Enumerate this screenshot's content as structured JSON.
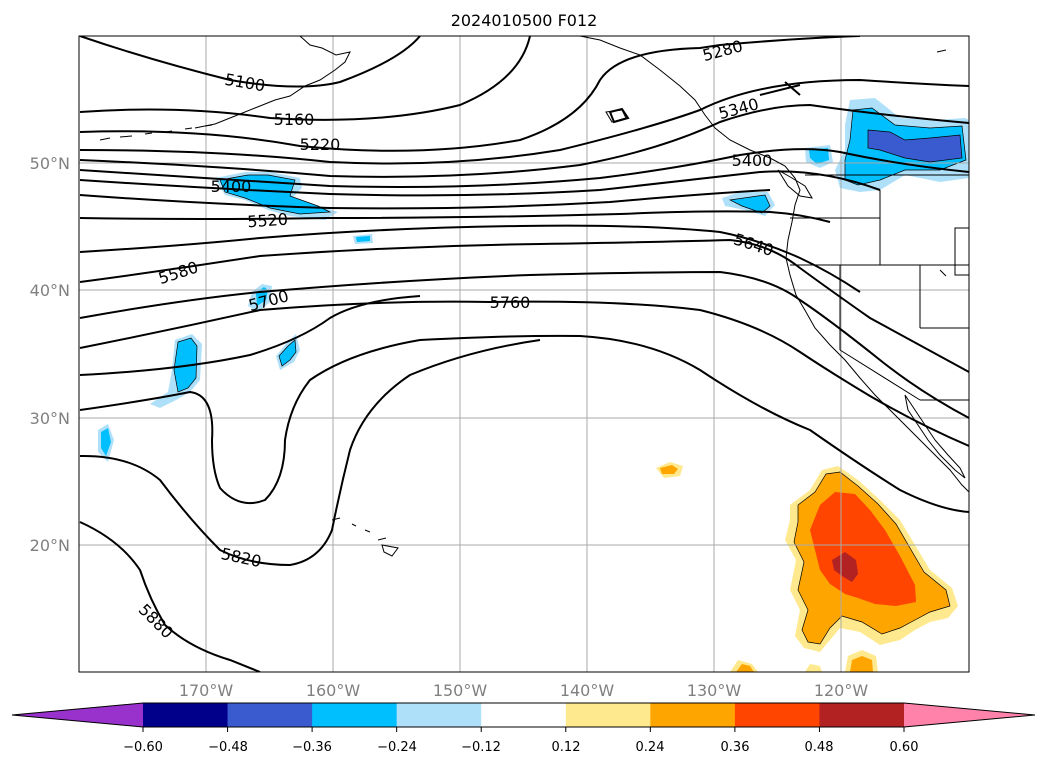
{
  "title": "2024010500 F012",
  "lat_labels": [
    "50°N",
    "40°N",
    "30°N",
    "20°N"
  ],
  "lon_labels": [
    "170°W",
    "160°W",
    "150°W",
    "140°W",
    "130°W",
    "120°W"
  ],
  "contour_labels": [
    "5100",
    "5160",
    "5220",
    "5280",
    "5340",
    "5400",
    "5400",
    "5520",
    "5580",
    "5640",
    "5700",
    "5760",
    "5820",
    "5880"
  ],
  "colorbar": {
    "ticks": [
      "−0.60",
      "−0.48",
      "−0.36",
      "−0.24",
      "−0.12",
      "0.12",
      "0.24",
      "0.36",
      "0.48",
      "0.60"
    ],
    "colors": [
      "#9932cc",
      "#00008b",
      "#3a5bd0",
      "#00bfff",
      "#aee0fa",
      "#ffffff",
      "#ffe98e",
      "#ffa500",
      "#ff4500",
      "#b22222",
      "#ff82ab"
    ]
  },
  "colors": {
    "neg_light": "#aee0fa",
    "neg_mid": "#00bfff",
    "neg_dark": "#3a5bd0",
    "pos_light": "#ffe98e",
    "pos_mid": "#ffa500",
    "pos_dark": "#ff4500",
    "pos_darker": "#b22222"
  }
}
